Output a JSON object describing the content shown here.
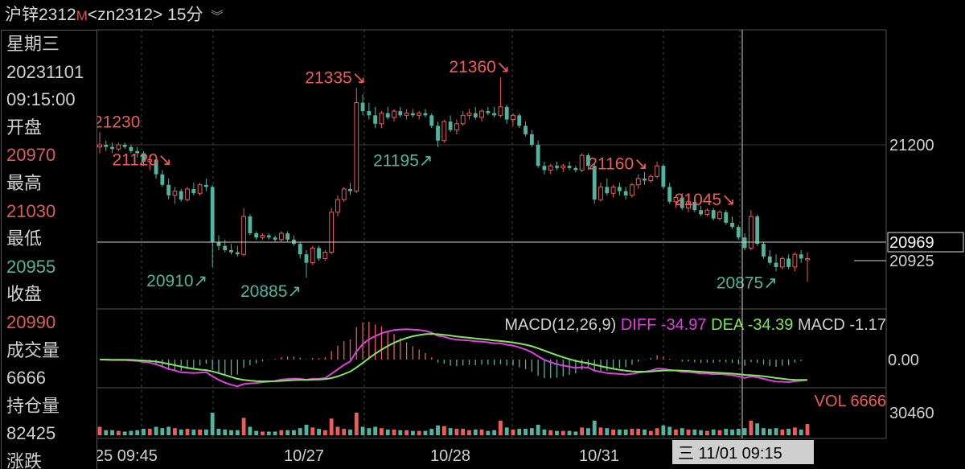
{
  "header": {
    "symbol": "沪锌2312",
    "badge": "M",
    "code": "<zn2312>",
    "period": "15分",
    "collapse_icon": "double-chevron-down-icon"
  },
  "colors": {
    "up": "#ef5a5a",
    "down": "#4fb59e",
    "diff": "#e040e0",
    "dea": "#7ee85a",
    "grid": "#555555",
    "crosshair": "#cfcfcf",
    "text": "#d0d0d0"
  },
  "sidebar": {
    "weekday": "星期三",
    "date": "20231101",
    "time": "09:15:00",
    "open_label": "开盘",
    "open": "20970",
    "high_label": "最高",
    "high": "21030",
    "low_label": "最低",
    "low": "20955",
    "close_label": "收盘",
    "close": "20990",
    "volume_label": "成交量",
    "volume": "6666",
    "oi_label": "持仓量",
    "oi": "82425",
    "more_label": "涨跌"
  },
  "chart_data": {
    "type": "candlestick",
    "y_ticks": [
      "21200",
      "20925"
    ],
    "crosshair_price": "20969",
    "annotations": [
      {
        "text": "21230",
        "kind": "high",
        "index": 0
      },
      {
        "text": "21120↘",
        "kind": "high",
        "index": 10
      },
      {
        "text": "20910↗",
        "kind": "low",
        "index": 18
      },
      {
        "text": "20885↗",
        "kind": "low",
        "index": 33
      },
      {
        "text": "21335↘",
        "kind": "high",
        "index": 41
      },
      {
        "text": "21195↗",
        "kind": "low",
        "index": 54
      },
      {
        "text": "21360↘",
        "kind": "high",
        "index": 64
      },
      {
        "text": "21160↘",
        "kind": "high",
        "index": 86
      },
      {
        "text": "21045↘",
        "kind": "high",
        "index": 100
      },
      {
        "text": "20875↗",
        "kind": "low",
        "index": 109
      }
    ],
    "candles": [
      [
        21195,
        21230,
        21180,
        21200
      ],
      [
        21200,
        21210,
        21185,
        21195
      ],
      [
        21195,
        21205,
        21180,
        21190
      ],
      [
        21190,
        21205,
        21185,
        21200
      ],
      [
        21200,
        21205,
        21190,
        21195
      ],
      [
        21195,
        21200,
        21180,
        21185
      ],
      [
        21185,
        21195,
        21170,
        21180
      ],
      [
        21180,
        21185,
        21150,
        21160
      ],
      [
        21160,
        21175,
        21140,
        21165
      ],
      [
        21165,
        21170,
        21120,
        21130
      ],
      [
        21130,
        21140,
        21100,
        21105
      ],
      [
        21105,
        21120,
        21070,
        21080
      ],
      [
        21080,
        21100,
        21060,
        21090
      ],
      [
        21090,
        21095,
        21065,
        21070
      ],
      [
        21070,
        21100,
        21065,
        21095
      ],
      [
        21095,
        21110,
        21080,
        21085
      ],
      [
        21085,
        21110,
        21080,
        21105
      ],
      [
        21105,
        21120,
        21090,
        21100
      ],
      [
        21100,
        21105,
        20910,
        20970
      ],
      [
        20970,
        20985,
        20950,
        20960
      ],
      [
        20960,
        20975,
        20945,
        20950
      ],
      [
        20950,
        20965,
        20940,
        20945
      ],
      [
        20945,
        20960,
        20935,
        20940
      ],
      [
        20940,
        21050,
        20935,
        21030
      ],
      [
        21030,
        21035,
        20985,
        20990
      ],
      [
        20990,
        20995,
        20975,
        20980
      ],
      [
        20980,
        20990,
        20975,
        20985
      ],
      [
        20985,
        20990,
        20975,
        20980
      ],
      [
        20980,
        20985,
        20970,
        20975
      ],
      [
        20975,
        20995,
        20970,
        20990
      ],
      [
        20990,
        20995,
        20970,
        20975
      ],
      [
        20975,
        20985,
        20960,
        20965
      ],
      [
        20965,
        20970,
        20930,
        20940
      ],
      [
        20940,
        20950,
        20885,
        20920
      ],
      [
        20920,
        20960,
        20915,
        20955
      ],
      [
        20955,
        20960,
        20925,
        20930
      ],
      [
        20930,
        20950,
        20925,
        20945
      ],
      [
        20945,
        21050,
        20940,
        21040
      ],
      [
        21040,
        21080,
        21030,
        21070
      ],
      [
        21070,
        21100,
        21065,
        21095
      ],
      [
        21095,
        21110,
        21080,
        21090
      ],
      [
        21090,
        21335,
        21085,
        21300
      ],
      [
        21300,
        21320,
        21270,
        21280
      ],
      [
        21280,
        21300,
        21260,
        21270
      ],
      [
        21270,
        21290,
        21240,
        21250
      ],
      [
        21250,
        21280,
        21240,
        21275
      ],
      [
        21275,
        21290,
        21260,
        21265
      ],
      [
        21265,
        21285,
        21255,
        21280
      ],
      [
        21280,
        21290,
        21265,
        21270
      ],
      [
        21270,
        21285,
        21260,
        21275
      ],
      [
        21275,
        21285,
        21265,
        21270
      ],
      [
        21270,
        21280,
        21260,
        21275
      ],
      [
        21275,
        21285,
        21265,
        21270
      ],
      [
        21270,
        21275,
        21240,
        21245
      ],
      [
        21245,
        21255,
        21195,
        21210
      ],
      [
        21210,
        21260,
        21205,
        21255
      ],
      [
        21255,
        21270,
        21230,
        21235
      ],
      [
        21235,
        21260,
        21225,
        21250
      ],
      [
        21250,
        21280,
        21245,
        21270
      ],
      [
        21270,
        21285,
        21260,
        21275
      ],
      [
        21275,
        21290,
        21260,
        21265
      ],
      [
        21265,
        21285,
        21255,
        21280
      ],
      [
        21280,
        21290,
        21270,
        21275
      ],
      [
        21275,
        21290,
        21265,
        21270
      ],
      [
        21270,
        21360,
        21265,
        21290
      ],
      [
        21290,
        21295,
        21250,
        21260
      ],
      [
        21260,
        21275,
        21245,
        21270
      ],
      [
        21270,
        21275,
        21240,
        21245
      ],
      [
        21245,
        21255,
        21220,
        21225
      ],
      [
        21225,
        21235,
        21195,
        21200
      ],
      [
        21200,
        21210,
        21145,
        21150
      ],
      [
        21150,
        21160,
        21130,
        21140
      ],
      [
        21140,
        21155,
        21130,
        21150
      ],
      [
        21150,
        21160,
        21140,
        21145
      ],
      [
        21145,
        21155,
        21135,
        21150
      ],
      [
        21150,
        21160,
        21140,
        21145
      ],
      [
        21145,
        21150,
        21135,
        21140
      ],
      [
        21140,
        21180,
        21135,
        21175
      ],
      [
        21175,
        21180,
        21140,
        21150
      ],
      [
        21150,
        21155,
        21060,
        21070
      ],
      [
        21070,
        21110,
        21065,
        21100
      ],
      [
        21100,
        21120,
        21080,
        21085
      ],
      [
        21085,
        21105,
        21075,
        21100
      ],
      [
        21100,
        21110,
        21080,
        21090
      ],
      [
        21090,
        21100,
        21070,
        21080
      ],
      [
        21080,
        21110,
        21075,
        21105
      ],
      [
        21105,
        21130,
        21095,
        21120
      ],
      [
        21120,
        21135,
        21105,
        21115
      ],
      [
        21115,
        21130,
        21110,
        21125
      ],
      [
        21125,
        21160,
        21120,
        21150
      ],
      [
        21150,
        21155,
        21095,
        21100
      ],
      [
        21100,
        21110,
        21060,
        21065
      ],
      [
        21065,
        21080,
        21050,
        21075
      ],
      [
        21075,
        21085,
        21045,
        21050
      ],
      [
        21050,
        21070,
        21040,
        21065
      ],
      [
        21065,
        21070,
        21040,
        21045
      ],
      [
        21045,
        21055,
        21030,
        21035
      ],
      [
        21035,
        21050,
        21030,
        21045
      ],
      [
        21045,
        21050,
        21020,
        21025
      ],
      [
        21025,
        21045,
        21020,
        21040
      ],
      [
        21040,
        21045,
        21010,
        21015
      ],
      [
        21015,
        21030,
        21000,
        21005
      ],
      [
        21005,
        21010,
        20975,
        20980
      ],
      [
        20980,
        20990,
        20950,
        20955
      ],
      [
        20955,
        21045,
        20950,
        21030
      ],
      [
        21030,
        21035,
        20960,
        20965
      ],
      [
        20965,
        20970,
        20930,
        20935
      ],
      [
        20935,
        20950,
        20915,
        20920
      ],
      [
        20920,
        20940,
        20900,
        20910
      ],
      [
        20910,
        20935,
        20905,
        20930
      ],
      [
        20930,
        20940,
        20905,
        20910
      ],
      [
        20910,
        20945,
        20900,
        20940
      ],
      [
        20940,
        20950,
        20920,
        20930
      ],
      [
        20930,
        20945,
        20875,
        20930
      ]
    ],
    "macd": {
      "label": "MACD(12,26,9)",
      "diff_label": "DIFF",
      "diff": "-34.97",
      "dea_label": "DEA",
      "dea": "-34.39",
      "macd_label": "MACD",
      "macd": "-1.17",
      "zero_tick": "0.00"
    },
    "volume": {
      "label": "VOL",
      "value": "6666",
      "y_tick": "30460"
    },
    "x_ticks": [
      "25 09:45",
      "10/27",
      "10/28",
      "10/31"
    ],
    "crosshair_time": "三 11/01 09:15"
  }
}
